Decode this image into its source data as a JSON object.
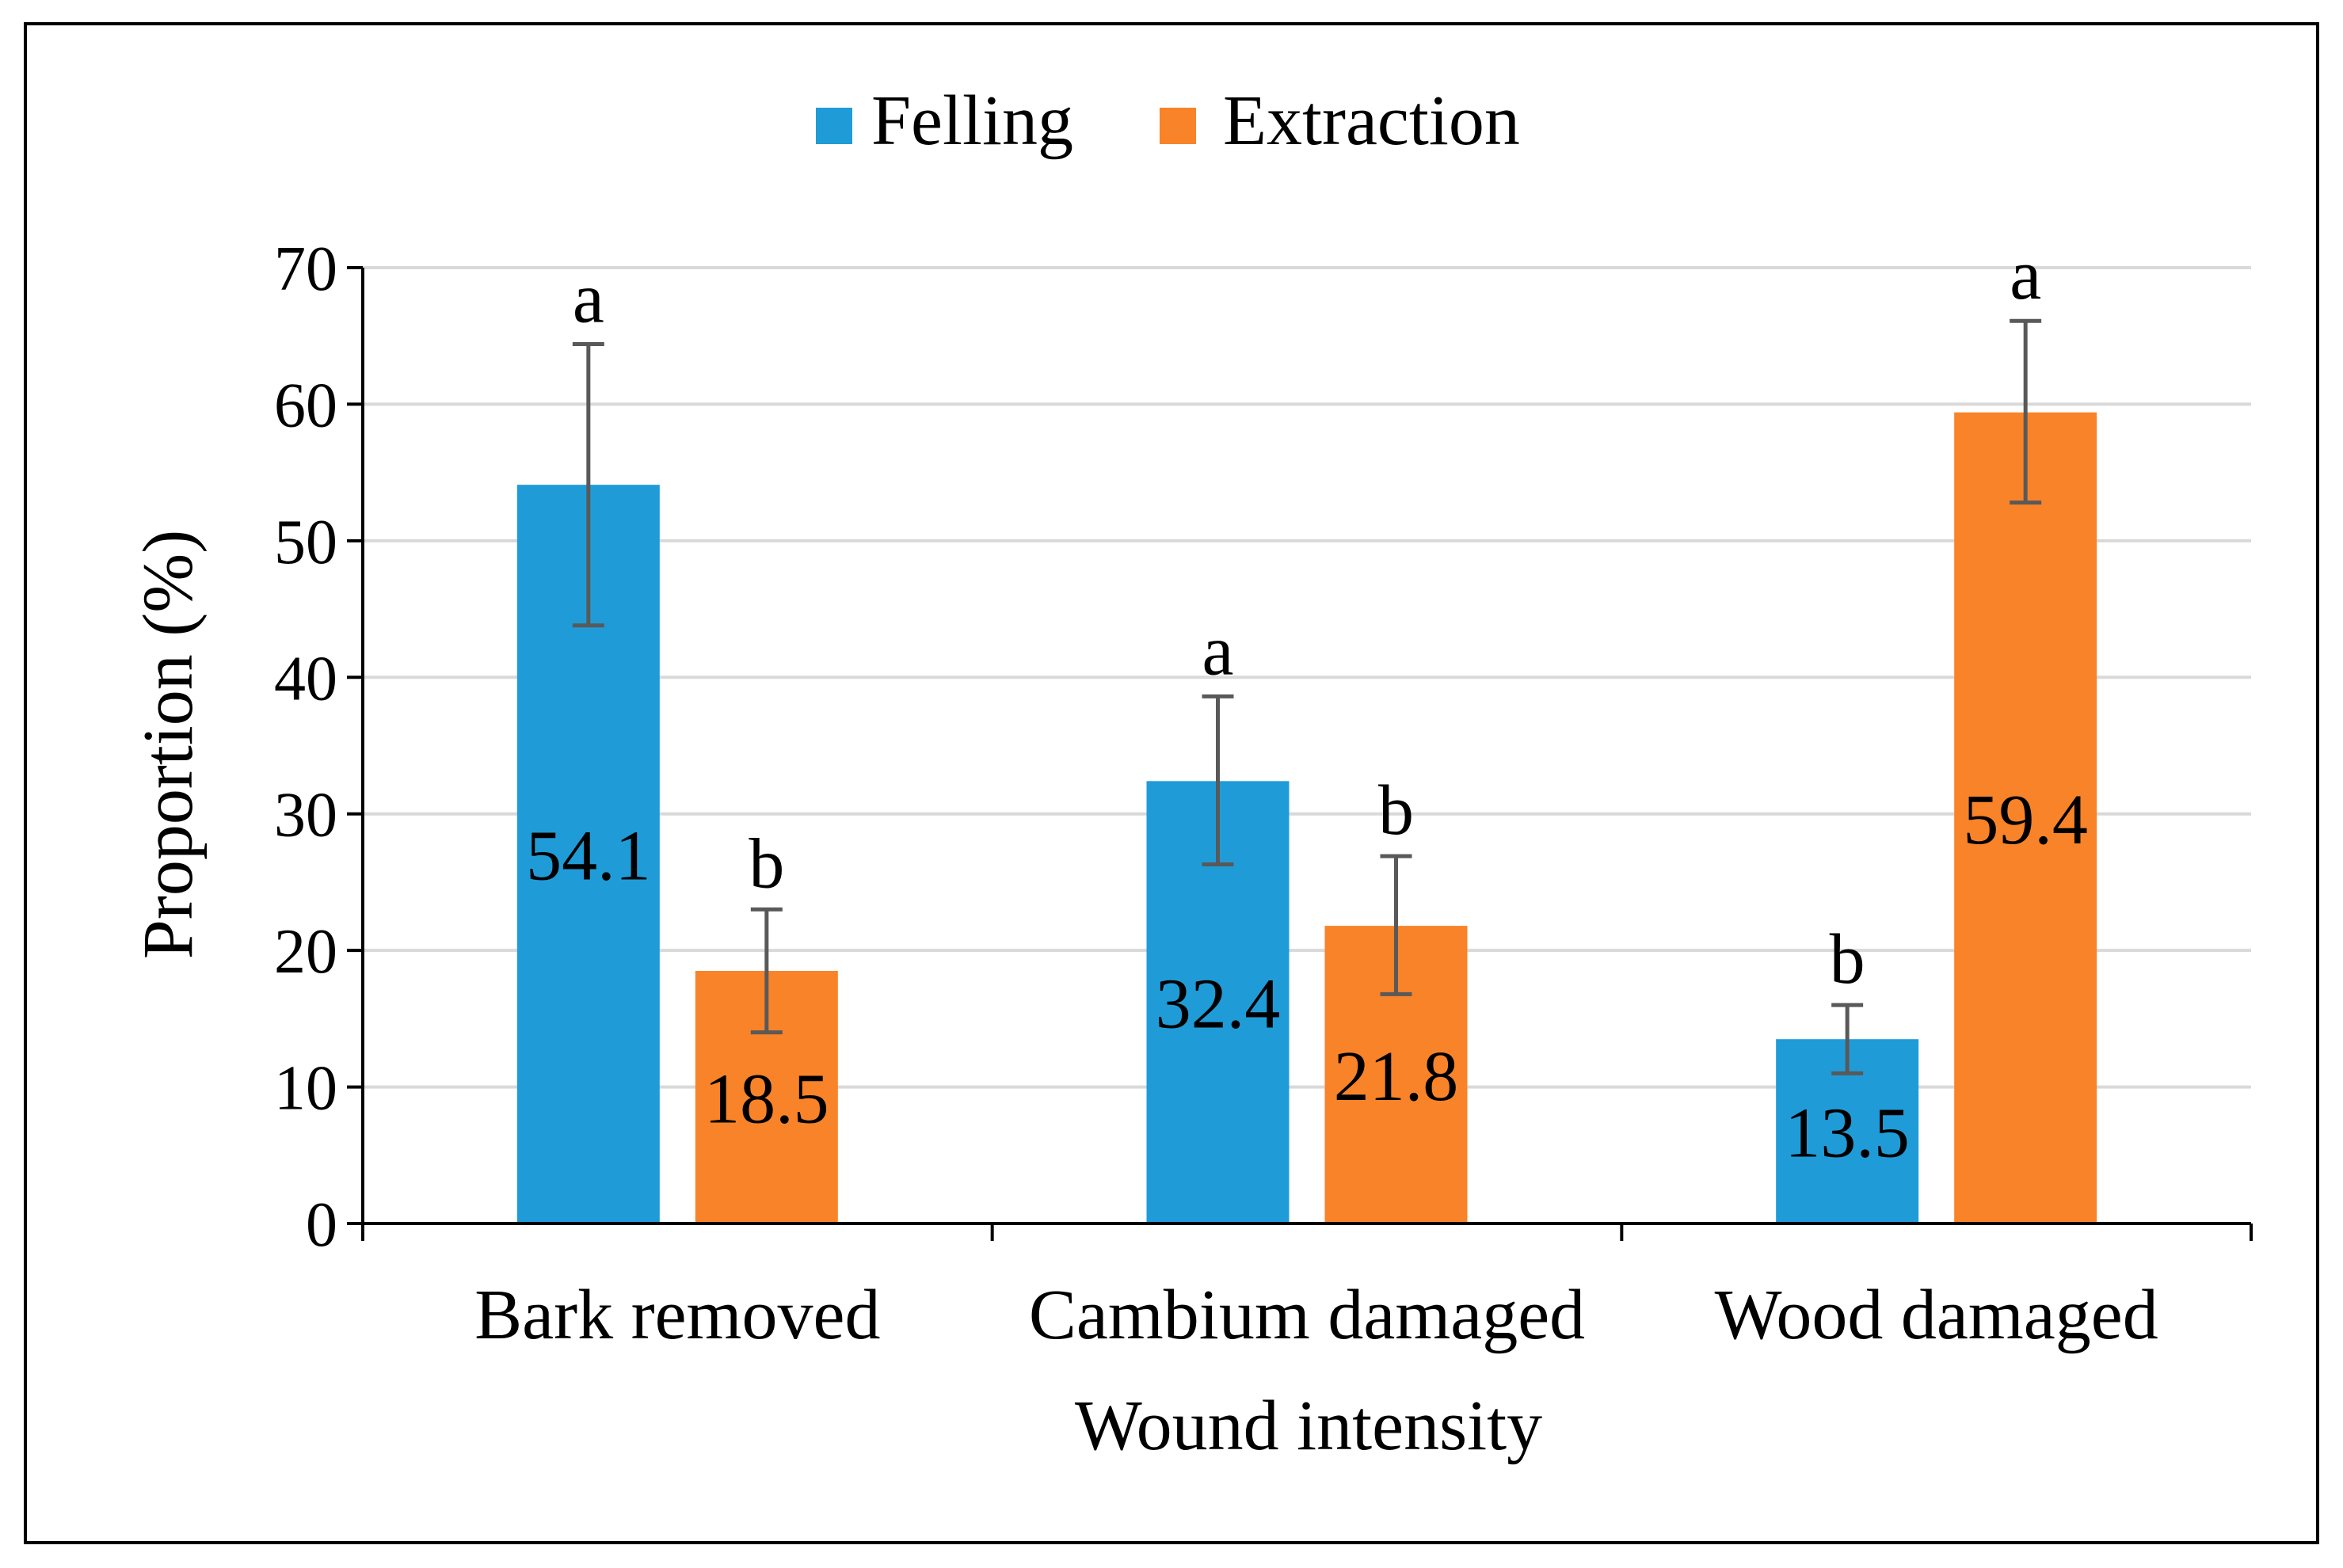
{
  "chart_data": {
    "type": "bar",
    "categories": [
      "Bark removed",
      "Cambium damaged",
      "Wood damaged"
    ],
    "series": [
      {
        "name": "Felling",
        "color": "#1f9cd8",
        "values": [
          54.1,
          32.4,
          13.5
        ],
        "labels": [
          "54.1",
          "32.4",
          "13.5"
        ],
        "error_low": [
          43.8,
          26.3,
          11.0
        ],
        "error_high": [
          64.4,
          38.6,
          16.0
        ],
        "letters": [
          "a",
          "a",
          "b"
        ]
      },
      {
        "name": "Extraction",
        "color": "#f98328",
        "values": [
          18.5,
          21.8,
          59.4
        ],
        "labels": [
          "18.5",
          "21.8",
          "59.4"
        ],
        "error_low": [
          14.0,
          16.8,
          52.8
        ],
        "error_high": [
          23.0,
          26.9,
          66.1
        ],
        "letters": [
          "b",
          "b",
          "a"
        ]
      }
    ],
    "title": "",
    "xlabel": "Wound intensity",
    "ylabel": "Proportion (%)",
    "ylim": [
      0,
      70
    ],
    "yticks": [
      0,
      10,
      20,
      30,
      40,
      50,
      60,
      70
    ],
    "ytick_labels": [
      "0",
      "10",
      "20",
      "30",
      "40",
      "50",
      "60",
      "70"
    ],
    "grid": true,
    "legend_position": "top-center",
    "gridline_color": "#d9d9d9",
    "axis_color": "#000000",
    "error_bar_color": "#595959"
  }
}
